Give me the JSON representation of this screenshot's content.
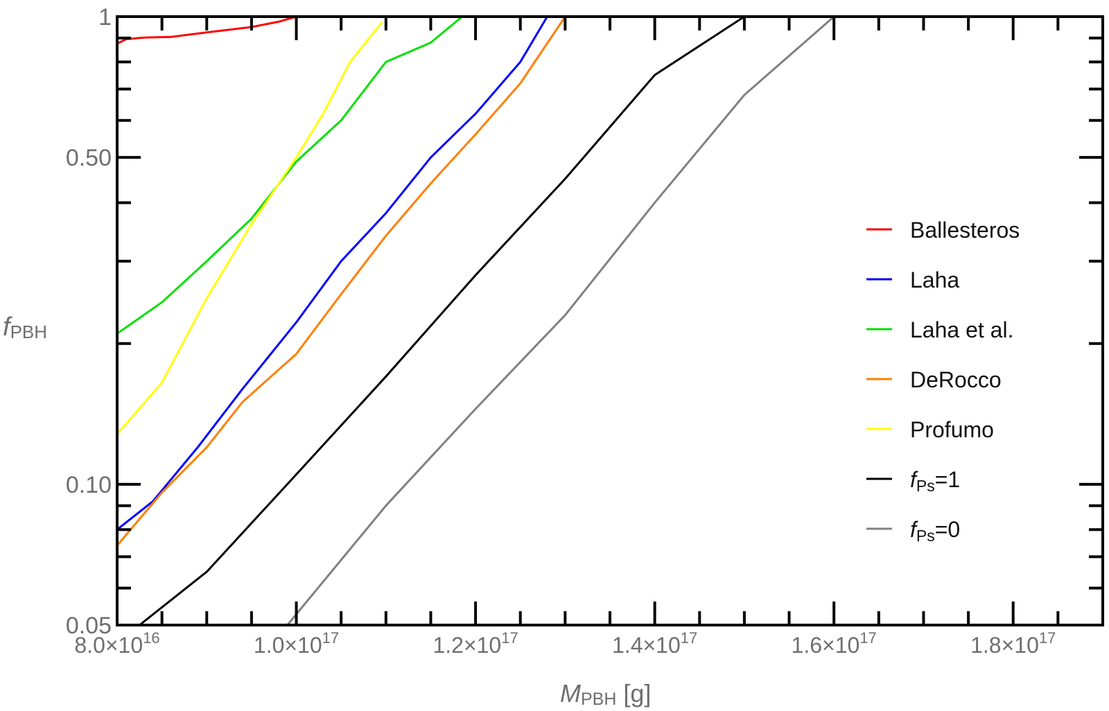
{
  "chart_data": {
    "type": "line",
    "xlabel": {
      "main": "M",
      "sub": "PBH",
      "suffix": " [g]"
    },
    "ylabel": {
      "main": "f",
      "sub": "PBH"
    },
    "xscale": "linear",
    "yscale": "log",
    "xlim": [
      8e+16,
      1.9e+17
    ],
    "ylim": [
      0.05,
      1
    ],
    "grid": false,
    "legend_position": "right",
    "y_ticks": [
      {
        "value": 0.05,
        "label": "0.05"
      },
      {
        "value": 0.1,
        "label": "0.10"
      },
      {
        "value": 0.5,
        "label": "0.50"
      },
      {
        "value": 1.0,
        "label": "1"
      }
    ],
    "x_ticks": [
      {
        "value": 8e+16,
        "mantissa": "8.0×10",
        "exponent": "16"
      },
      {
        "value": 1e+17,
        "mantissa": "1.0×10",
        "exponent": "17"
      },
      {
        "value": 1.2e+17,
        "mantissa": "1.2×10",
        "exponent": "17"
      },
      {
        "value": 1.4e+17,
        "mantissa": "1.4×10",
        "exponent": "17"
      },
      {
        "value": 1.6e+17,
        "mantissa": "1.6×10",
        "exponent": "17"
      },
      {
        "value": 1.8e+17,
        "mantissa": "1.8×10",
        "exponent": "17"
      }
    ],
    "series": [
      {
        "name": "Ballesteros",
        "color": "#ff0000",
        "points": [
          [
            8e+16,
            0.875
          ],
          [
            8.1e+16,
            0.895
          ],
          [
            8.3e+16,
            0.902
          ],
          [
            8.6e+16,
            0.905
          ],
          [
            8.8e+16,
            0.915
          ],
          [
            9e+16,
            0.925
          ],
          [
            9.5e+16,
            0.95
          ],
          [
            9.8e+16,
            0.975
          ],
          [
            1e+17,
            1.0
          ]
        ]
      },
      {
        "name": "Laha",
        "color": "#0000ff",
        "points": [
          [
            8e+16,
            0.08
          ],
          [
            8.4e+16,
            0.092
          ],
          [
            8.9e+16,
            0.12
          ],
          [
            9.4e+16,
            0.16
          ],
          [
            1e+17,
            0.222
          ],
          [
            1.05e+17,
            0.3
          ],
          [
            1.1e+17,
            0.38
          ],
          [
            1.15e+17,
            0.5
          ],
          [
            1.2e+17,
            0.62
          ],
          [
            1.25e+17,
            0.8
          ],
          [
            1.28e+17,
            1.0
          ]
        ]
      },
      {
        "name": "Laha et al.",
        "color": "#00e000",
        "points": [
          [
            8e+16,
            0.21
          ],
          [
            8.5e+16,
            0.245
          ],
          [
            9e+16,
            0.3
          ],
          [
            9.5e+16,
            0.37
          ],
          [
            1e+17,
            0.49
          ],
          [
            1.05e+17,
            0.6
          ],
          [
            1.1e+17,
            0.8
          ],
          [
            1.15e+17,
            0.88
          ],
          [
            1.185e+17,
            1.0
          ]
        ]
      },
      {
        "name": "DeRocco",
        "color": "#ff7f00",
        "points": [
          [
            8e+16,
            0.074
          ],
          [
            8.5e+16,
            0.096
          ],
          [
            9e+16,
            0.12
          ],
          [
            9.4e+16,
            0.15
          ],
          [
            1e+17,
            0.19
          ],
          [
            1.05e+17,
            0.255
          ],
          [
            1.1e+17,
            0.34
          ],
          [
            1.15e+17,
            0.44
          ],
          [
            1.2e+17,
            0.56
          ],
          [
            1.25e+17,
            0.72
          ],
          [
            1.3e+17,
            1.0
          ]
        ]
      },
      {
        "name": "Profumo",
        "color": "#ffff00",
        "points": [
          [
            8e+16,
            0.128
          ],
          [
            8.5e+16,
            0.165
          ],
          [
            9e+16,
            0.25
          ],
          [
            9.5e+16,
            0.36
          ],
          [
            1e+17,
            0.5
          ],
          [
            1.03e+17,
            0.62
          ],
          [
            1.06e+17,
            0.8
          ],
          [
            1.095e+17,
            0.97
          ]
        ]
      },
      {
        "name": "f_Ps=1",
        "name_main": "f",
        "name_sub": "Ps",
        "name_suffix": "=1",
        "color": "#000000",
        "points": [
          [
            8.25e+16,
            0.05
          ],
          [
            9e+16,
            0.065
          ],
          [
            1e+17,
            0.105
          ],
          [
            1.1e+17,
            0.17
          ],
          [
            1.2e+17,
            0.28
          ],
          [
            1.3e+17,
            0.45
          ],
          [
            1.4e+17,
            0.75
          ],
          [
            1.5e+17,
            1.0
          ]
        ]
      },
      {
        "name": "f_Ps=0",
        "name_main": "f",
        "name_sub": "Ps",
        "name_suffix": "=0",
        "color": "#808080",
        "points": [
          [
            9.9e+16,
            0.05
          ],
          [
            1.1e+17,
            0.09
          ],
          [
            1.2e+17,
            0.145
          ],
          [
            1.3e+17,
            0.23
          ],
          [
            1.4e+17,
            0.4
          ],
          [
            1.5e+17,
            0.68
          ],
          [
            1.6e+17,
            1.0
          ]
        ]
      }
    ]
  }
}
